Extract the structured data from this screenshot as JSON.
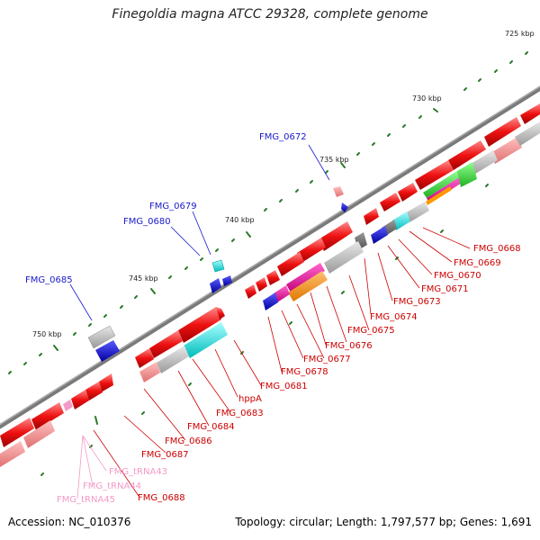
{
  "title": "Finegoldia magna ATCC 29328, complete genome",
  "footer": {
    "accession": "Accession: NC_010376",
    "summary": "Topology: circular; Length: 1,797,577 bp; Genes: 1,691"
  },
  "scale_labels": [
    "725 kbp",
    "730 kbp",
    "735 kbp",
    "740 kbp",
    "745 kbp",
    "750 kbp"
  ],
  "top_strand_labels": [
    "FMG_0672",
    "FMG_0679",
    "FMG_0680",
    "FMG_0685"
  ],
  "bottom_strand_labels": [
    "FMG_0668",
    "FMG_0669",
    "FMG_0670",
    "FMG_0671",
    "FMG_0673",
    "FMG_0674",
    "FMG_0675",
    "FMG_0676",
    "FMG_0677",
    "FMG_0678",
    "FMG_0681",
    "hppA",
    "FMG_0683",
    "FMG_0684",
    "FMG_0686",
    "FMG_0687",
    "FMG_0688"
  ],
  "trna_labels": [
    "FMG_tRNA43",
    "FMG_tRNA44",
    "FMG_tRNA45"
  ],
  "colors": {
    "cds": "#ee1111",
    "cds_faded": "#f08080",
    "backbone": "#808080",
    "forward_label": "#1a1acc",
    "reverse_label": "#cc0000",
    "trna_label": "#f49ac8",
    "tick": "#2a7a2a"
  }
}
